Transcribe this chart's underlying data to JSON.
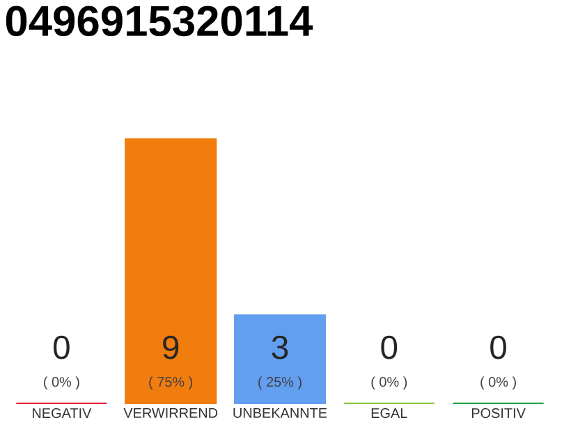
{
  "chart_data": {
    "type": "bar",
    "title": "0496915320114",
    "categories": [
      "NEGATIV",
      "VERWIRREND",
      "UNBEKANNTE",
      "EGAL",
      "POSITIV"
    ],
    "values": [
      0,
      9,
      3,
      0,
      0
    ],
    "colors": [
      "#e8203a",
      "#f07d0e",
      "#639ff0",
      "#8cc63e",
      "#20a040"
    ],
    "ylim": [
      0,
      9
    ],
    "tick_labels": "x",
    "data_labels": true,
    "annotations": [
      "( 0% )",
      "( 75% )",
      "( 25% )",
      "( 0% )",
      "( 0% )"
    ]
  }
}
